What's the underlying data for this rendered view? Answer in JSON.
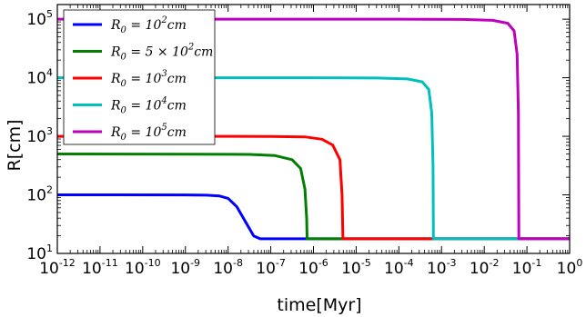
{
  "chart_data": {
    "type": "line",
    "xlabel": "time[Myr]",
    "ylabel": "R[cm]",
    "xscale": "log",
    "yscale": "log",
    "xlim_exp": [
      -12,
      0
    ],
    "ylim_exp": [
      1,
      5.25
    ],
    "x_ticks": [
      "10-12",
      "10-11",
      "10-10",
      "10-9",
      "10-8",
      "10-7",
      "10-6",
      "10-5",
      "10-4",
      "10-3",
      "10-2",
      "10-1",
      "100"
    ],
    "y_ticks": [
      "101",
      "102",
      "103",
      "104",
      "105"
    ],
    "legend_placement": "top-left",
    "grid": false,
    "series": [
      {
        "name": "R_0 = 10^2 cm",
        "legend_parts": [
          "R",
          "0",
          " = 10",
          "2",
          "cm"
        ],
        "color": "#0000ff",
        "points": [
          [
            -12,
            2.0
          ],
          [
            -9,
            1.999
          ],
          [
            -8.5,
            1.995
          ],
          [
            -8.2,
            1.98
          ],
          [
            -8.0,
            1.94
          ],
          [
            -7.8,
            1.8
          ],
          [
            -7.6,
            1.55
          ],
          [
            -7.4,
            1.3
          ],
          [
            -7.25,
            1.25
          ],
          [
            -5.5,
            1.25
          ],
          [
            -4.0,
            1.25
          ],
          [
            0,
            1.25
          ]
        ]
      },
      {
        "name": "R_0 = 5 × 10^2 cm",
        "legend_parts": [
          "R",
          "0",
          " = 5 × 10",
          "2",
          "cm"
        ],
        "color": "#007f00",
        "points": [
          [
            -12,
            2.699
          ],
          [
            -9,
            2.696
          ],
          [
            -7.5,
            2.69
          ],
          [
            -6.9,
            2.67
          ],
          [
            -6.5,
            2.6
          ],
          [
            -6.3,
            2.45
          ],
          [
            -6.2,
            2.1
          ],
          [
            -6.16,
            1.6
          ],
          [
            -6.15,
            1.25
          ],
          [
            -5.0,
            1.25
          ],
          [
            0,
            1.25
          ]
        ]
      },
      {
        "name": "R_0 = 10^3 cm",
        "legend_parts": [
          "R",
          "0",
          " = 10",
          "3",
          "cm"
        ],
        "color": "#ff0000",
        "points": [
          [
            -12,
            3.0
          ],
          [
            -8,
            3.0
          ],
          [
            -7,
            2.998
          ],
          [
            -6.2,
            2.99
          ],
          [
            -5.8,
            2.95
          ],
          [
            -5.55,
            2.85
          ],
          [
            -5.38,
            2.6
          ],
          [
            -5.33,
            2.0
          ],
          [
            -5.31,
            1.25
          ],
          [
            -3.0,
            1.25
          ],
          [
            0,
            1.25
          ]
        ]
      },
      {
        "name": "R_0 = 10^4 cm",
        "legend_parts": [
          "R",
          "0",
          " = 10",
          "4",
          "cm"
        ],
        "color": "#00bfbf",
        "points": [
          [
            -12,
            4.0
          ],
          [
            -6,
            4.0
          ],
          [
            -4.5,
            3.995
          ],
          [
            -3.8,
            3.98
          ],
          [
            -3.45,
            3.93
          ],
          [
            -3.3,
            3.8
          ],
          [
            -3.23,
            3.4
          ],
          [
            -3.2,
            2.5
          ],
          [
            -3.19,
            1.25
          ],
          [
            -1.0,
            1.25
          ],
          [
            0,
            1.25
          ]
        ]
      },
      {
        "name": "R_0 = 10^5 cm",
        "legend_parts": [
          "R",
          "0",
          " = 10",
          "5",
          "cm"
        ],
        "color": "#bf00bf",
        "points": [
          [
            -12,
            5.0
          ],
          [
            -4,
            5.0
          ],
          [
            -2.5,
            4.995
          ],
          [
            -1.8,
            4.98
          ],
          [
            -1.45,
            4.93
          ],
          [
            -1.3,
            4.8
          ],
          [
            -1.23,
            4.4
          ],
          [
            -1.2,
            3.4
          ],
          [
            -1.19,
            1.25
          ],
          [
            0,
            1.25
          ]
        ]
      }
    ]
  }
}
